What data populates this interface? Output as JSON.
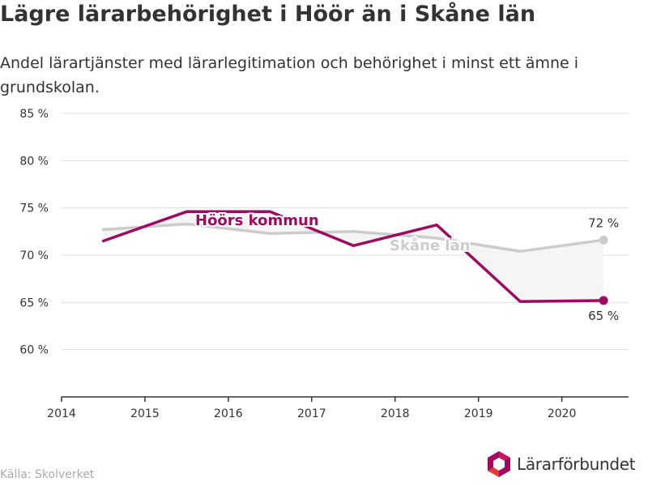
{
  "title": "Lägre lärarbehörighet i Höör än i Skåne län",
  "subtitle": "Andel lärartjänster med lärarlegitimation och behörighet i minst ett ämne i grundskolan.",
  "source": "Källa: Skolverket",
  "logo": {
    "text": "Lärarförbundet"
  },
  "colors": {
    "hoor": "#9b0b62",
    "skane": "#cccccc",
    "gap_fill": "#f5f5f5",
    "grid": "#dddddd",
    "axis": "#333333",
    "text": "#333333",
    "source": "#aaaaaa"
  },
  "chart_data": {
    "type": "line",
    "title": "Lägre lärarbehörighet i Höör än i Skåne län",
    "subtitle": "Andel lärartjänster med lärarlegitimation och behörighet i minst ett ämne i grundskolan.",
    "xlabel": "",
    "ylabel": "",
    "x_ticks": [
      "2014",
      "2015",
      "2016",
      "2017",
      "2018",
      "2019",
      "2020"
    ],
    "y_ticks": [
      "60 %",
      "65 %",
      "70 %",
      "75 %",
      "80 %",
      "85 %"
    ],
    "xlim": [
      2014,
      2020.8
    ],
    "ylim": [
      55,
      85
    ],
    "grid": true,
    "x": [
      2014.5,
      2015.5,
      2016.5,
      2017.5,
      2018.5,
      2019.5,
      2020.5
    ],
    "series": [
      {
        "name": "Höörs kommun",
        "values": [
          71.5,
          74.6,
          74.6,
          71.0,
          73.2,
          65.1,
          65.2
        ],
        "end_label": "65 %"
      },
      {
        "name": "Skåne län",
        "values": [
          72.7,
          73.3,
          72.3,
          72.5,
          71.8,
          70.4,
          71.6
        ],
        "end_label": "72 %"
      }
    ]
  }
}
